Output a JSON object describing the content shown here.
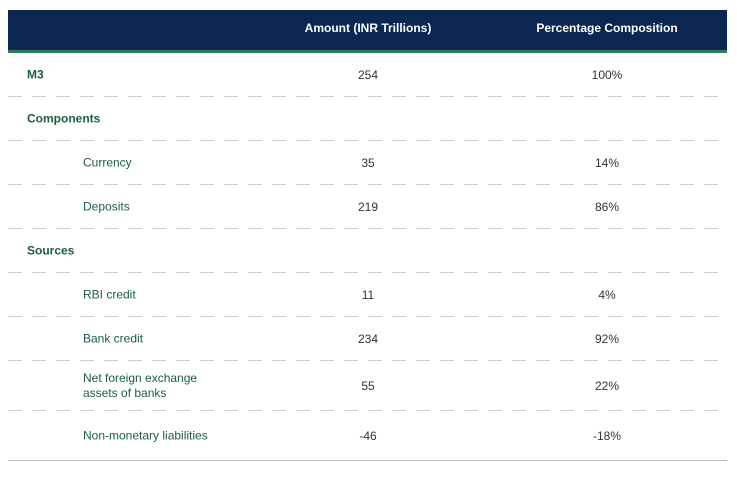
{
  "header": {
    "amount": "Amount (INR Trillions)",
    "percentage": "Percentage Composition"
  },
  "total": {
    "label": "M3",
    "amount": "254",
    "percentage": "100%"
  },
  "groups": [
    {
      "title": "Components",
      "rows": [
        {
          "label": "Currency",
          "amount": "35",
          "percentage": "14%"
        },
        {
          "label": "Deposits",
          "amount": "219",
          "percentage": "86%"
        }
      ]
    },
    {
      "title": "Sources",
      "rows": [
        {
          "label": "RBI credit",
          "amount": "11",
          "percentage": "4%"
        },
        {
          "label": "Bank credit",
          "amount": "234",
          "percentage": "92%"
        },
        {
          "label": "Net foreign exchange assets of banks",
          "amount": "55",
          "percentage": "22%"
        },
        {
          "label": "Non-monetary liabilities",
          "amount": "-46",
          "percentage": "-18%"
        }
      ]
    }
  ]
}
